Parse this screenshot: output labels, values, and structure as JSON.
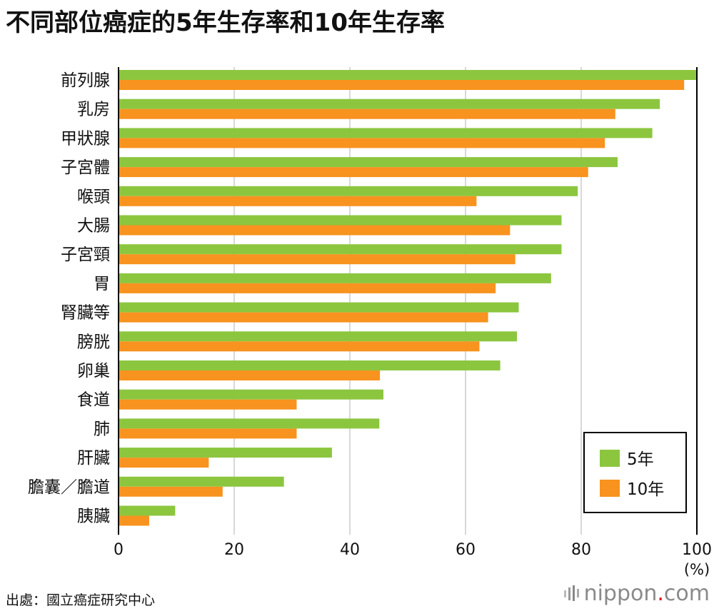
{
  "title": "不同部位癌症的5年生存率和10年生存率",
  "source": "出處：國立癌症研究中心",
  "logo": {
    "name": "nippon",
    "dot": ".",
    "suffix": "com"
  },
  "colors": {
    "five_year": "#8cc63f",
    "ten_year": "#f7931e",
    "grid": "#cccccc",
    "axis": "#000000"
  },
  "chart_data": {
    "type": "bar",
    "orientation": "horizontal",
    "title": "不同部位癌症的5年生存率和10年生存率",
    "xlabel": "(%)",
    "ylabel": "",
    "xlim": [
      0,
      100
    ],
    "xticks": [
      "0",
      "20",
      "40",
      "60",
      "80",
      "100"
    ],
    "categories": [
      "前列腺",
      "乳房",
      "甲狀腺",
      "子宮體",
      "喉頭",
      "大腸",
      "子宮頸",
      "胃",
      "腎臟等",
      "膀胱",
      "卵巢",
      "食道",
      "肺",
      "肝臟",
      "膽囊／膽道",
      "胰臟"
    ],
    "series": [
      {
        "name": "5年",
        "values": [
          100,
          93.6,
          92.3,
          86.3,
          79.4,
          76.6,
          76.6,
          74.8,
          69.2,
          68.9,
          66.0,
          45.8,
          45.1,
          36.9,
          28.6,
          9.8
        ]
      },
      {
        "name": "10年",
        "values": [
          97.8,
          85.9,
          84.1,
          81.2,
          61.9,
          67.7,
          68.6,
          65.2,
          63.9,
          62.4,
          45.2,
          30.8,
          30.8,
          15.6,
          18.0,
          5.3
        ]
      }
    ],
    "legend": [
      "5年",
      "10年"
    ],
    "legend_position": "bottom-right",
    "grid": true
  }
}
